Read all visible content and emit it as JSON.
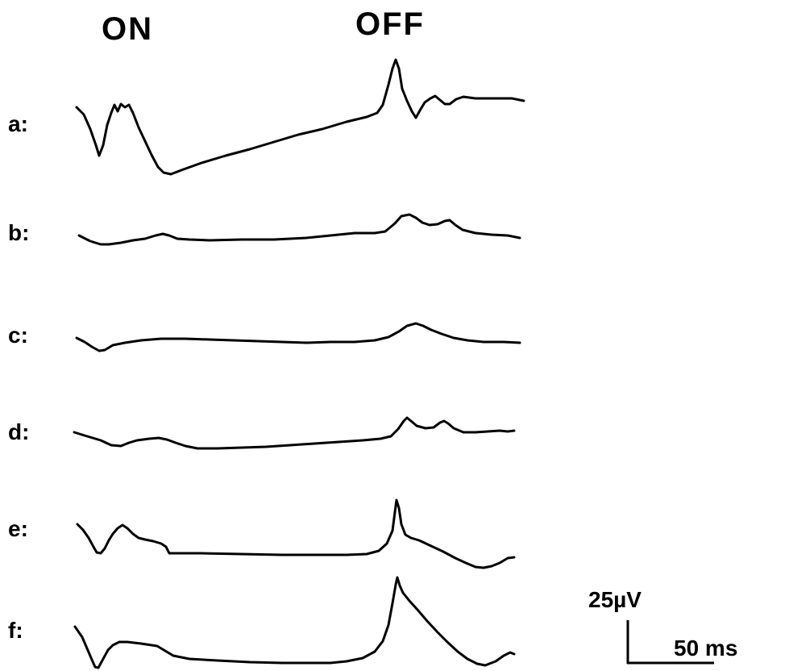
{
  "headers": {
    "on": "ON",
    "off": "OFF"
  },
  "trace_labels": [
    "a:",
    "b:",
    "c:",
    "d:",
    "e:",
    "f:"
  ],
  "scale_bar": {
    "voltage": "25µV",
    "time": "50 ms"
  }
}
